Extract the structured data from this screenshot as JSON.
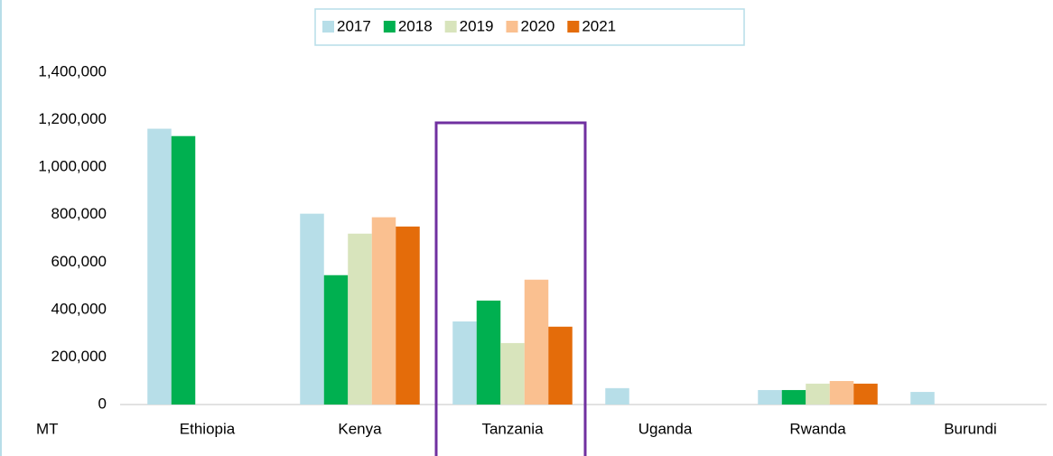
{
  "chart_data": {
    "type": "bar",
    "y_label": "MT",
    "categories": [
      "Ethiopia",
      "Kenya",
      "Tanzania",
      "Uganda",
      "Rwanda",
      "Burundi"
    ],
    "series": [
      {
        "name": "2017",
        "color": "#b7dee8",
        "values": [
          1162000,
          804000,
          350000,
          69000,
          61000,
          53000
        ]
      },
      {
        "name": "2018",
        "color": "#00b050",
        "values": [
          1131000,
          545000,
          438000,
          null,
          61000,
          null
        ]
      },
      {
        "name": "2019",
        "color": "#d8e4bc",
        "values": [
          null,
          720000,
          259000,
          null,
          88000,
          null
        ]
      },
      {
        "name": "2020",
        "color": "#fac090",
        "values": [
          null,
          789000,
          526000,
          null,
          99000,
          null
        ]
      },
      {
        "name": "2021",
        "color": "#e46c0a",
        "values": [
          null,
          750000,
          328000,
          null,
          88000,
          null
        ]
      }
    ],
    "ylim": [
      0,
      1400000
    ],
    "yticks": [
      0,
      {
        "value": 200000,
        "label": "200,000"
      },
      {
        "value": 400000,
        "label": "400,000"
      },
      {
        "value": 600000,
        "label": "600,000"
      },
      {
        "value": 800000,
        "label": "800,000"
      },
      {
        "value": 1000000,
        "label": "1,000,000"
      },
      {
        "value": 1200000,
        "label": "1,200,000"
      },
      {
        "value": 1400000,
        "label": "1,400,000"
      }
    ],
    "grid": false,
    "legend": "top"
  }
}
